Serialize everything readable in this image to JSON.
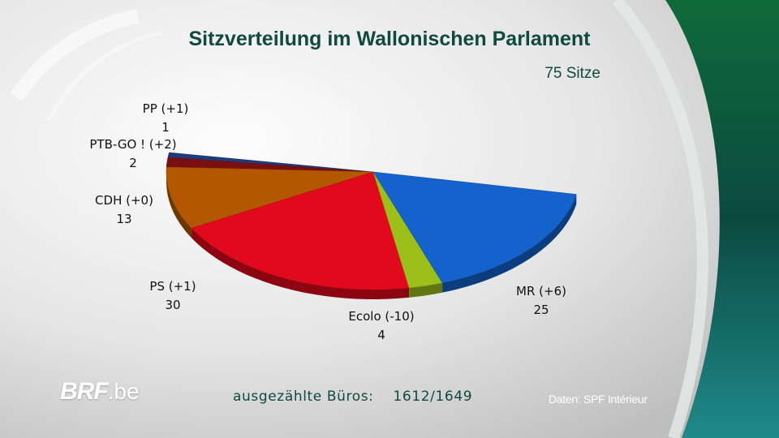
{
  "chart_data": {
    "type": "pie",
    "variant": "semicircle-3d",
    "title": "Sitzverteilung im Wallonischen Parlament",
    "subtitle": "75 Sitze",
    "slices": [
      {
        "party": "PP",
        "change": "(+1)",
        "value": 1,
        "color": "#1f3c7a"
      },
      {
        "party": "PTB-GO !",
        "change": "(+2)",
        "value": 2,
        "color": "#7a0f12"
      },
      {
        "party": "CDH",
        "change": "(+0)",
        "value": 13,
        "color": "#b35800"
      },
      {
        "party": "PS",
        "change": "(+1)",
        "value": 30,
        "color": "#e00a1c"
      },
      {
        "party": "Ecolo",
        "change": "(-10)",
        "value": 4,
        "color": "#9cbf1a"
      },
      {
        "party": "MR",
        "change": "(+6)",
        "value": 25,
        "color": "#1463cc"
      }
    ]
  },
  "footer": {
    "progress_label": "ausgezählte Büros:",
    "progress_value": "1612/1649",
    "brand_main": "BRF",
    "brand_suffix": ".be",
    "source": "Daten: SPF Intérieur"
  }
}
